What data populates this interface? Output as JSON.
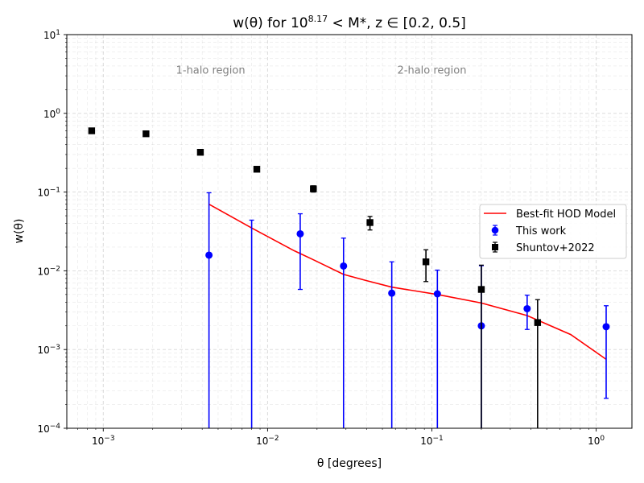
{
  "chart_data": {
    "type": "scatter",
    "title": "w(θ) for 10^8.17 < M*, z ∈ [0.2, 0.5]",
    "xlabel": "θ [degrees]",
    "ylabel": "w(θ)",
    "xscale": "log",
    "yscale": "log",
    "xlim": [
      0.0006,
      1.65
    ],
    "ylim": [
      0.0001,
      10
    ],
    "grid": true,
    "legend_position": "center-right",
    "x_tick_labels": [
      {
        "value": 0.001,
        "base": "10",
        "exp": "−3"
      },
      {
        "value": 0.01,
        "base": "10",
        "exp": "−2"
      },
      {
        "value": 0.1,
        "base": "10",
        "exp": "−1"
      },
      {
        "value": 1,
        "base": "10",
        "exp": "0"
      }
    ],
    "y_tick_labels": [
      {
        "value": 0.0001,
        "base": "10",
        "exp": "−4"
      },
      {
        "value": 0.001,
        "base": "10",
        "exp": "−3"
      },
      {
        "value": 0.01,
        "base": "10",
        "exp": "−2"
      },
      {
        "value": 0.1,
        "base": "10",
        "exp": "−1"
      },
      {
        "value": 1,
        "base": "10",
        "exp": "0"
      },
      {
        "value": 10,
        "base": "10",
        "exp": "1"
      }
    ],
    "annotations": [
      {
        "text": "1-halo region",
        "x": 0.0045,
        "y": 3.2
      },
      {
        "text": "2-halo region",
        "x": 0.1,
        "y": 3.2
      }
    ],
    "series": [
      {
        "name": "Best-fit HOD Model",
        "kind": "line",
        "color": "#ff0000",
        "x": [
          0.0044,
          0.008,
          0.0145,
          0.019,
          0.029,
          0.04,
          0.057,
          0.108,
          0.2,
          0.38,
          0.7,
          1.15
        ],
        "y": [
          0.07,
          0.035,
          0.018,
          0.0138,
          0.009,
          0.0075,
          0.0062,
          0.005,
          0.0039,
          0.0027,
          0.00155,
          0.00075
        ]
      },
      {
        "name": "This work",
        "kind": "errorbar",
        "marker": "circle",
        "color": "#0000ff",
        "x": [
          0.0044,
          0.008,
          0.0158,
          0.029,
          0.057,
          0.108,
          0.2,
          0.38,
          1.15
        ],
        "y": [
          0.0158,
          0.0001,
          0.0295,
          0.0115,
          0.0052,
          0.0051,
          0.002,
          0.0033,
          0.00195
        ],
        "yerr_low": [
          0.0001,
          0.0001,
          0.0058,
          0.0001,
          0.0001,
          0.0001,
          0.0001,
          0.0018,
          0.00024
        ],
        "yerr_high": [
          0.098,
          0.044,
          0.053,
          0.026,
          0.013,
          0.0102,
          0.0116,
          0.0049,
          0.0036
        ]
      },
      {
        "name": "Shuntov+2022",
        "kind": "errorbar",
        "marker": "square",
        "color": "#000000",
        "x": [
          0.00085,
          0.00182,
          0.0039,
          0.0086,
          0.019,
          0.042,
          0.092,
          0.2,
          0.44
        ],
        "y": [
          0.6,
          0.55,
          0.32,
          0.195,
          0.11,
          0.041,
          0.013,
          0.0058,
          0.0022
        ],
        "yerr_low": [
          0.56,
          0.53,
          0.31,
          0.185,
          0.1,
          0.033,
          0.0073,
          0.0001,
          0.0001
        ],
        "yerr_high": [
          0.64,
          0.57,
          0.33,
          0.205,
          0.12,
          0.049,
          0.0185,
          0.0118,
          0.0043
        ]
      }
    ]
  }
}
